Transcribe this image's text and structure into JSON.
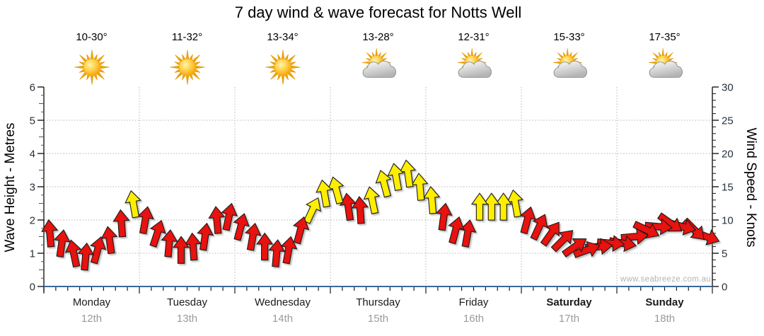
{
  "title": "7 day wind & wave forecast for Notts Well",
  "watermark": "www.seabreeze.com.au",
  "y_axis_left": {
    "label": "Wave Height - Metres",
    "min": 0,
    "max": 6,
    "major_ticks": [
      "0",
      "1",
      "2",
      "3",
      "4",
      "5",
      "6"
    ]
  },
  "y_axis_right": {
    "label": "Wind Speed - Knots",
    "min": 0,
    "max": 30,
    "major_ticks": [
      "0",
      "5",
      "10",
      "15",
      "20",
      "25",
      "30"
    ]
  },
  "colors": {
    "arrow_low": "#e8120e",
    "arrow_high": "#ffee00",
    "arrow_outline": "#1a1a1a",
    "grid": "#b5b5b5",
    "axis": "#1a1a1a",
    "x_axis_line": "#36699c",
    "tick_label": "#25313d",
    "day_name": "#1a1a1a",
    "day_date": "#9b9b9b",
    "watermark": "#b3b3b3"
  },
  "days": [
    {
      "name": "Monday",
      "date": "12th",
      "temp_range": "10-30°",
      "icon": "sunny",
      "weekend": false
    },
    {
      "name": "Tuesday",
      "date": "13th",
      "temp_range": "11-32°",
      "icon": "sunny",
      "weekend": false
    },
    {
      "name": "Wednesday",
      "date": "14th",
      "temp_range": "13-34°",
      "icon": "sunny",
      "weekend": false
    },
    {
      "name": "Thursday",
      "date": "15th",
      "temp_range": "13-28°",
      "icon": "partly-cloudy",
      "weekend": false
    },
    {
      "name": "Friday",
      "date": "16th",
      "temp_range": "12-31°",
      "icon": "partly-cloudy",
      "weekend": false
    },
    {
      "name": "Saturday",
      "date": "17th",
      "temp_range": "15-33°",
      "icon": "partly-cloudy",
      "weekend": true
    },
    {
      "name": "Sunday",
      "date": "18th",
      "temp_range": "17-35°",
      "icon": "partly-cloudy",
      "weekend": true
    }
  ],
  "chart_data": {
    "type": "scatter",
    "title": "7 day wind & wave forecast for Notts Well",
    "x_categories": [
      "Monday 12th",
      "Tuesday 13th",
      "Wednesday 14th",
      "Thursday 15th",
      "Friday 16th",
      "Saturday 17th",
      "Sunday 18th"
    ],
    "points_per_day": 8,
    "ylabel_left": "Wave Height - Metres",
    "ylabel_right": "Wind Speed - Knots",
    "ylim_left": [
      0,
      6
    ],
    "ylim_right": [
      0,
      30
    ],
    "grid": "dotted, horizontal at 1-5 m (5-25 kn), vertical at day boundaries",
    "marker": "wind arrow; y = wind speed in knots (right axis); rotation = wind direction (0 = up); color = red (lighter wind) or yellow (stronger wind, ~12+ kn)",
    "days_arrows": [
      {
        "day": "Monday",
        "knots": [
          8,
          6.5,
          5,
          4.5,
          5.5,
          7,
          9.5,
          12.4
        ],
        "dir": [
          -5,
          8,
          -12,
          5,
          15,
          -8,
          -4,
          -10
        ],
        "color": [
          "red",
          "red",
          "red",
          "red",
          "red",
          "red",
          "red",
          "yellow"
        ]
      },
      {
        "day": "Tuesday",
        "knots": [
          10,
          8,
          6.5,
          5.5,
          6,
          7.5,
          10,
          10.5
        ],
        "dir": [
          10,
          18,
          5,
          0,
          -4,
          8,
          -5,
          12
        ],
        "color": [
          "red",
          "red",
          "red",
          "red",
          "red",
          "red",
          "red",
          "red"
        ]
      },
      {
        "day": "Wednesday",
        "knots": [
          9,
          7.5,
          6,
          5,
          5.5,
          8.5,
          11.5,
          14
        ],
        "dir": [
          15,
          10,
          0,
          5,
          10,
          15,
          25,
          -10
        ],
        "color": [
          "red",
          "red",
          "red",
          "red",
          "red",
          "red",
          "yellow",
          "yellow"
        ]
      },
      {
        "day": "Thursday",
        "knots": [
          14.5,
          12,
          11.5,
          13,
          15.5,
          16.5,
          17,
          15
        ],
        "dir": [
          -15,
          -8,
          -4,
          -12,
          -15,
          -10,
          -8,
          -5
        ],
        "color": [
          "yellow",
          "red",
          "red",
          "yellow",
          "yellow",
          "yellow",
          "yellow",
          "yellow"
        ]
      },
      {
        "day": "Friday",
        "knots": [
          13,
          10.5,
          8.5,
          8,
          12,
          12,
          12,
          12.5
        ],
        "dir": [
          -5,
          8,
          15,
          10,
          0,
          0,
          0,
          -10
        ],
        "color": [
          "yellow",
          "red",
          "red",
          "red",
          "yellow",
          "yellow",
          "yellow",
          "yellow"
        ]
      },
      {
        "day": "Saturday",
        "knots": [
          10,
          9,
          8,
          7,
          6,
          5.5,
          6,
          6.5
        ],
        "dir": [
          15,
          25,
          35,
          45,
          55,
          70,
          85,
          95
        ],
        "color": [
          "red",
          "red",
          "red",
          "red",
          "red",
          "red",
          "red",
          "red"
        ]
      },
      {
        "day": "Sunday",
        "knots": [
          6.5,
          7.5,
          8.5,
          9,
          9.5,
          9,
          8.5,
          7.5
        ],
        "dir": [
          100,
          85,
          115,
          95,
          125,
          105,
          135,
          110
        ],
        "color": [
          "red",
          "red",
          "red",
          "red",
          "red",
          "red",
          "red",
          "red"
        ]
      }
    ]
  }
}
